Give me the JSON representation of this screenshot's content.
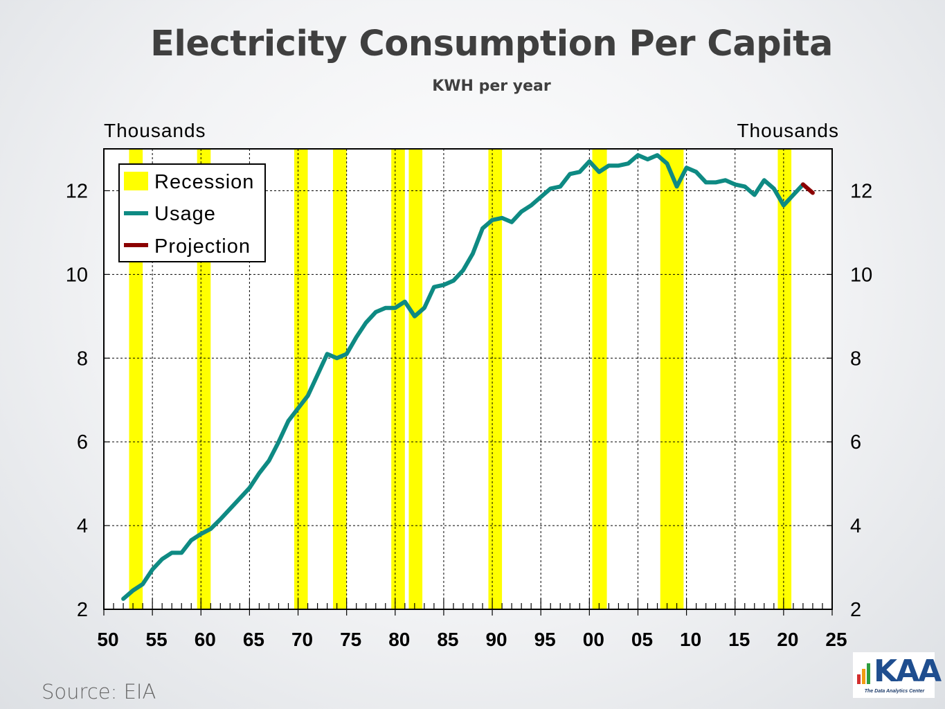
{
  "title": "Electricity Consumption Per Capita",
  "subtitle": "KWH per year",
  "source": "Source:  EIA",
  "logo": {
    "text": "KAA",
    "tagline": "The Data Analytics Center"
  },
  "colors": {
    "recession": "#ffff00",
    "usage": "#0e8a83",
    "projection": "#8b0000",
    "grid": "#000000"
  },
  "chart_data": {
    "type": "line",
    "left_axis_label": "Thousands",
    "right_axis_label": "Thousands",
    "xlim": [
      1950,
      2025
    ],
    "ylim": [
      2,
      13
    ],
    "x_tick_labels": [
      "50",
      "55",
      "60",
      "65",
      "70",
      "75",
      "80",
      "85",
      "90",
      "95",
      "00",
      "05",
      "10",
      "15",
      "20",
      "25"
    ],
    "y_tick_labels": [
      "2",
      "4",
      "6",
      "8",
      "10",
      "12"
    ],
    "grid": true,
    "legend_position": "top-left",
    "legend": [
      "Recession",
      "Usage",
      "Projection"
    ],
    "recessions": [
      [
        1952.6,
        1954.0
      ],
      [
        1959.6,
        1961.0
      ],
      [
        1969.6,
        1971.0
      ],
      [
        1973.6,
        1975.0
      ],
      [
        1979.6,
        1981.0
      ],
      [
        1981.4,
        1982.8
      ],
      [
        1989.6,
        1991.0
      ],
      [
        2000.3,
        2001.8
      ],
      [
        2007.3,
        2009.7
      ],
      [
        2019.4,
        2020.8
      ]
    ],
    "series": [
      {
        "name": "Usage",
        "x": [
          1952,
          1953,
          1954,
          1955,
          1956,
          1957,
          1958,
          1959,
          1960,
          1961,
          1962,
          1963,
          1964,
          1965,
          1966,
          1967,
          1968,
          1969,
          1970,
          1971,
          1972,
          1973,
          1974,
          1975,
          1976,
          1977,
          1978,
          1979,
          1980,
          1981,
          1982,
          1983,
          1984,
          1985,
          1986,
          1987,
          1988,
          1989,
          1990,
          1991,
          1992,
          1993,
          1994,
          1995,
          1996,
          1997,
          1998,
          1999,
          2000,
          2001,
          2002,
          2003,
          2004,
          2005,
          2006,
          2007,
          2008,
          2009,
          2010,
          2011,
          2012,
          2013,
          2014,
          2015,
          2016,
          2017,
          2018,
          2019,
          2020,
          2021,
          2022
        ],
        "values": [
          2.25,
          2.45,
          2.6,
          2.95,
          3.2,
          3.35,
          3.35,
          3.65,
          3.8,
          3.92,
          4.15,
          4.4,
          4.65,
          4.9,
          5.25,
          5.55,
          6.0,
          6.5,
          6.8,
          7.1,
          7.6,
          8.1,
          8.0,
          8.1,
          8.5,
          8.85,
          9.1,
          9.2,
          9.2,
          9.35,
          9.0,
          9.2,
          9.7,
          9.75,
          9.85,
          10.1,
          10.5,
          11.1,
          11.3,
          11.35,
          11.25,
          11.5,
          11.65,
          11.85,
          12.05,
          12.1,
          12.4,
          12.45,
          12.7,
          12.45,
          12.6,
          12.6,
          12.65,
          12.85,
          12.75,
          12.85,
          12.65,
          12.1,
          12.55,
          12.45,
          12.2,
          12.2,
          12.25,
          12.15,
          12.1,
          11.9,
          12.25,
          12.05,
          11.65,
          11.9,
          12.15
        ]
      },
      {
        "name": "Projection",
        "x": [
          2022,
          2023
        ],
        "values": [
          12.15,
          11.95
        ]
      }
    ]
  }
}
